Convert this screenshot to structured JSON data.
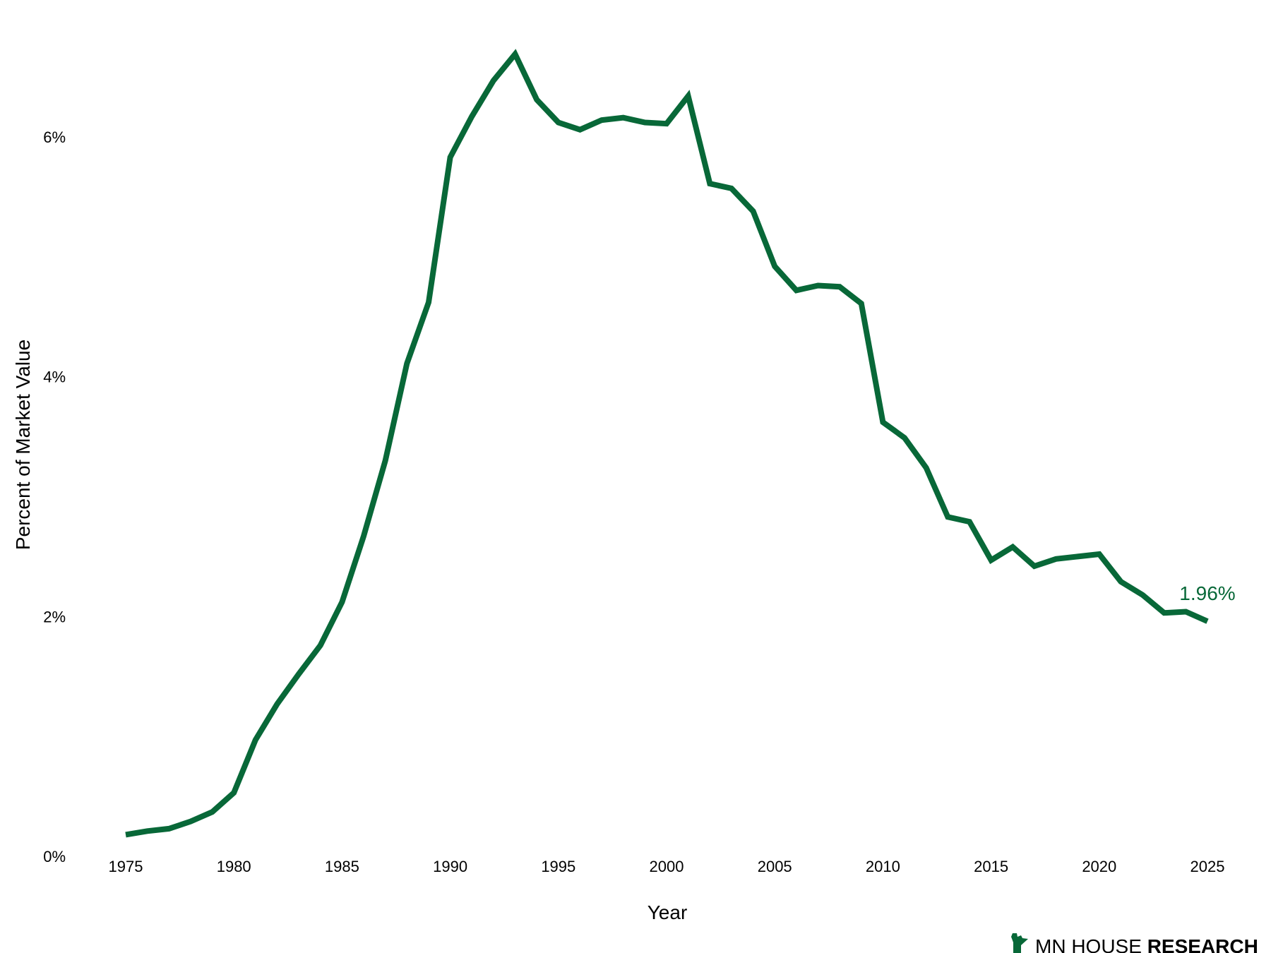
{
  "branding": {
    "text_light": "MN HOUSE ",
    "text_bold": "RESEARCH",
    "icon": "minnesota-state-icon"
  },
  "colors": {
    "line": "#086838",
    "text": "#000000",
    "background": "#ffffff"
  },
  "chart_data": {
    "type": "line",
    "title": "",
    "xlabel": "Year",
    "ylabel": "Percent of Market Value",
    "xlim": [
      1975,
      2025
    ],
    "ylim": [
      0,
      6.7
    ],
    "x_ticks": [
      1975,
      1980,
      1985,
      1990,
      1995,
      2000,
      2005,
      2010,
      2015,
      2020,
      2025
    ],
    "y_ticks": [
      0,
      2,
      4,
      6
    ],
    "y_tick_labels": [
      "0%",
      "2%",
      "4%",
      "6%"
    ],
    "grid": false,
    "legend": "none",
    "series": [
      {
        "x": [
          1975,
          1976,
          1977,
          1978,
          1979,
          1980,
          1981,
          1982,
          1983,
          1984,
          1985,
          1986,
          1987,
          1988,
          1989,
          1990,
          1991,
          1992,
          1993,
          1994,
          1995,
          1996,
          1997,
          1998,
          1999,
          2000,
          2001,
          2002,
          2003,
          2004,
          2005,
          2006,
          2007,
          2008,
          2009,
          2010,
          2011,
          2012,
          2013,
          2014,
          2015,
          2016,
          2017,
          2018,
          2019,
          2020,
          2021,
          2022,
          2023,
          2024,
          2025
        ],
        "values": [
          0.18,
          0.21,
          0.23,
          0.29,
          0.37,
          0.53,
          0.97,
          1.27,
          1.52,
          1.76,
          2.12,
          2.67,
          3.3,
          4.11,
          4.62,
          5.83,
          6.17,
          6.47,
          6.69,
          6.31,
          6.12,
          6.06,
          6.14,
          6.16,
          6.12,
          6.11,
          6.34,
          5.61,
          5.57,
          5.38,
          4.92,
          4.72,
          4.76,
          4.75,
          4.61,
          3.62,
          3.49,
          3.24,
          2.83,
          2.79,
          2.47,
          2.58,
          2.42,
          2.48,
          2.5,
          2.52,
          2.29,
          2.18,
          2.03,
          2.04,
          1.96
        ],
        "end_label": "1.96%"
      }
    ]
  }
}
